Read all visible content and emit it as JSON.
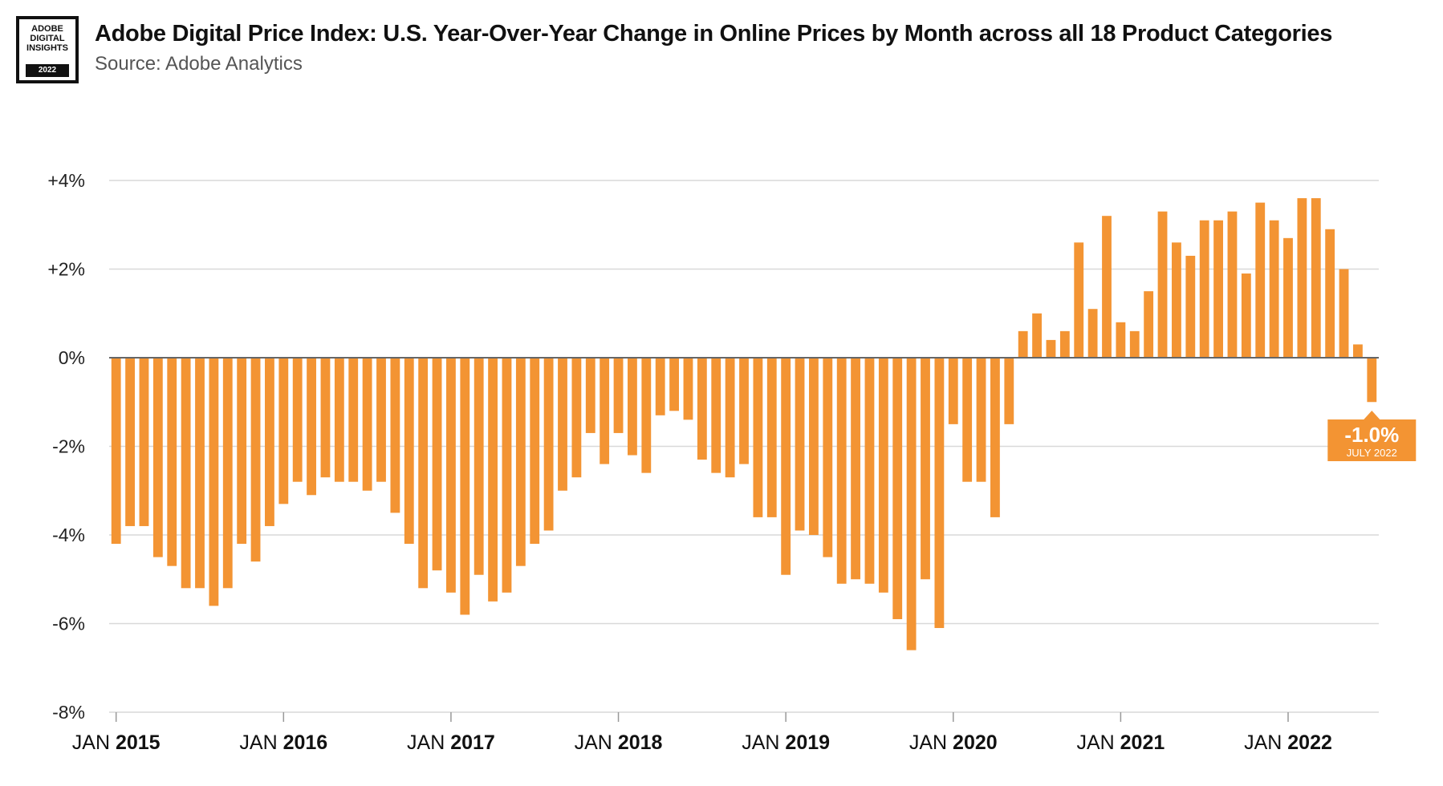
{
  "logo": {
    "text": "ADOBE\nDIGITAL\nINSIGHTS",
    "year": "2022"
  },
  "header": {
    "title": "Adobe Digital Price Index: U.S. Year-Over-Year Change in Online Prices by Month across all 18 Product Categories",
    "subtitle": "Source: Adobe Analytics"
  },
  "colors": {
    "bar": "#F39433",
    "grid": "#D9D9D9",
    "zero_line": "#666666",
    "callout": "#F39433"
  },
  "chart_data": {
    "type": "bar",
    "title": "Adobe Digital Price Index: U.S. Year-Over-Year Change in Online Prices by Month across all 18 Product Categories",
    "xlabel": "",
    "ylabel": "",
    "ylim": [
      -8,
      4
    ],
    "y_ticks": [
      4,
      2,
      0,
      -2,
      -4,
      -6,
      -8
    ],
    "y_tick_labels": [
      "+4%",
      "+2%",
      "0%",
      "-2%",
      "-4%",
      "-6%",
      "-8%"
    ],
    "grid": true,
    "legend": "none",
    "x_year_ticks": [
      {
        "prefix": "JAN ",
        "year": "2015",
        "index": 0
      },
      {
        "prefix": "JAN ",
        "year": "2016",
        "index": 12
      },
      {
        "prefix": "JAN ",
        "year": "2017",
        "index": 24
      },
      {
        "prefix": "JAN ",
        "year": "2018",
        "index": 36
      },
      {
        "prefix": "JAN ",
        "year": "2019",
        "index": 48
      },
      {
        "prefix": "JAN ",
        "year": "2020",
        "index": 60
      },
      {
        "prefix": "JAN ",
        "year": "2021",
        "index": 72
      },
      {
        "prefix": "JAN ",
        "year": "2022",
        "index": 84
      }
    ],
    "categories": [
      "2015-01",
      "2015-02",
      "2015-03",
      "2015-04",
      "2015-05",
      "2015-06",
      "2015-07",
      "2015-08",
      "2015-09",
      "2015-10",
      "2015-11",
      "2015-12",
      "2016-01",
      "2016-02",
      "2016-03",
      "2016-04",
      "2016-05",
      "2016-06",
      "2016-07",
      "2016-08",
      "2016-09",
      "2016-10",
      "2016-11",
      "2016-12",
      "2017-01",
      "2017-02",
      "2017-03",
      "2017-04",
      "2017-05",
      "2017-06",
      "2017-07",
      "2017-08",
      "2017-09",
      "2017-10",
      "2017-11",
      "2017-12",
      "2018-01",
      "2018-02",
      "2018-03",
      "2018-04",
      "2018-05",
      "2018-06",
      "2018-07",
      "2018-08",
      "2018-09",
      "2018-10",
      "2018-11",
      "2018-12",
      "2019-01",
      "2019-02",
      "2019-03",
      "2019-04",
      "2019-05",
      "2019-06",
      "2019-07",
      "2019-08",
      "2019-09",
      "2019-10",
      "2019-11",
      "2019-12",
      "2020-01",
      "2020-02",
      "2020-03",
      "2020-04",
      "2020-05",
      "2020-06",
      "2020-07",
      "2020-08",
      "2020-09",
      "2020-10",
      "2020-11",
      "2020-12",
      "2021-01",
      "2021-02",
      "2021-03",
      "2021-04",
      "2021-05",
      "2021-06",
      "2021-07",
      "2021-08",
      "2021-09",
      "2021-10",
      "2021-11",
      "2021-12",
      "2022-01",
      "2022-02",
      "2022-03",
      "2022-04",
      "2022-05",
      "2022-06",
      "2022-07"
    ],
    "values": [
      -4.2,
      -3.8,
      -3.8,
      -4.5,
      -4.7,
      -5.2,
      -5.2,
      -5.6,
      -5.2,
      -4.2,
      -4.6,
      -3.8,
      -3.3,
      -2.8,
      -3.1,
      -2.7,
      -2.8,
      -2.8,
      -3.0,
      -2.8,
      -3.5,
      -4.2,
      -5.2,
      -4.8,
      -5.3,
      -5.8,
      -4.9,
      -5.5,
      -5.3,
      -4.7,
      -4.2,
      -3.9,
      -3.0,
      -2.7,
      -1.7,
      -2.4,
      -1.7,
      -2.2,
      -2.6,
      -1.3,
      -1.2,
      -1.4,
      -2.3,
      -2.6,
      -2.7,
      -2.4,
      -3.6,
      -3.6,
      -4.9,
      -3.9,
      -4.0,
      -4.5,
      -5.1,
      -5.0,
      -5.1,
      -5.3,
      -5.9,
      -6.6,
      -5.0,
      -6.1,
      -1.5,
      -2.8,
      -2.8,
      -3.6,
      -1.5,
      0.6,
      1.0,
      0.4,
      0.6,
      2.6,
      1.1,
      3.2,
      0.8,
      0.6,
      1.5,
      3.3,
      2.6,
      2.3,
      3.1,
      3.1,
      3.3,
      1.9,
      3.5,
      3.1,
      2.7,
      3.6,
      3.6,
      2.9,
      2.0,
      0.3,
      -1.0
    ],
    "annotation": {
      "index": 90,
      "value_label": "-1.0%",
      "date_label": "JULY 2022"
    }
  }
}
